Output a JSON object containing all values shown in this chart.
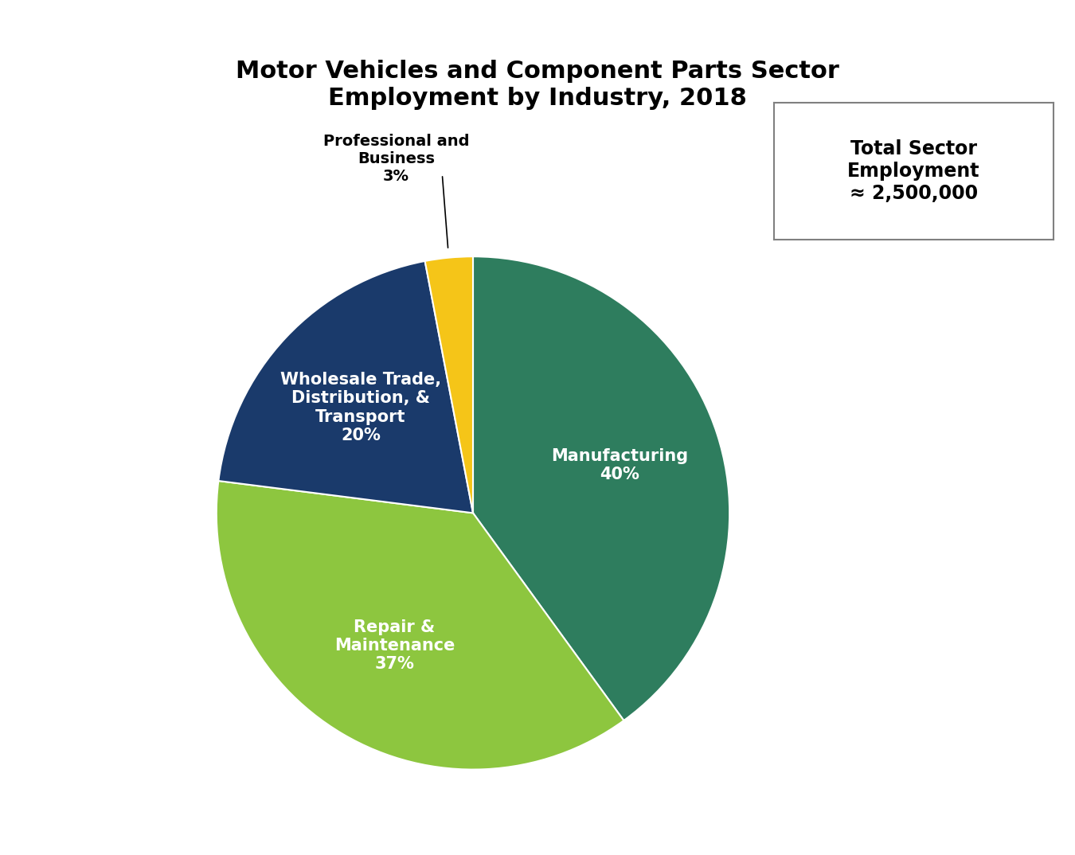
{
  "title": "Motor Vehicles and Component Parts Sector\nEmployment by Industry, 2018",
  "title_fontsize": 22,
  "labels": [
    "Manufacturing",
    "Repair &\nMaintenance",
    "Wholesale Trade,\nDistribution, &\nTransport",
    "Professional and\nBusiness"
  ],
  "values": [
    40,
    37,
    20,
    3
  ],
  "colors": [
    "#2e7d5e",
    "#8dc63f",
    "#1a3a6b",
    "#f5c518"
  ],
  "label_colors": [
    "white",
    "white",
    "white",
    "black"
  ],
  "pct_labels": [
    "40%",
    "37%",
    "20%",
    "3%"
  ],
  "startangle": 90,
  "annotation_text": "Total Sector\nEmployment\n≈ 2,500,000",
  "annotation_fontsize": 17,
  "background_color": "#ffffff"
}
